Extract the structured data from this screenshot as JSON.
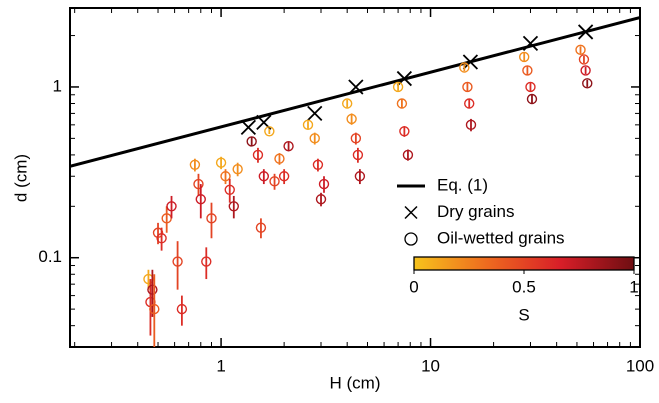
{
  "chart_data": {
    "type": "scatter",
    "xlabel": "H  (cm)",
    "ylabel": "d  (cm)",
    "xscale": "log",
    "yscale": "log",
    "xlim": [
      0.19,
      100
    ],
    "ylim": [
      0.03,
      2.9
    ],
    "xticks": [
      1,
      10,
      100
    ],
    "yticks": [
      0.1,
      1
    ],
    "legend": "lower right",
    "colormap": [
      "#f7c31c",
      "#ee6a1f",
      "#d81e28",
      "#6e0e12"
    ],
    "clim": [
      0,
      1
    ],
    "cticks": [
      0,
      0.5,
      1
    ],
    "clabel": "S",
    "series": [
      {
        "name": "Eq. (1)",
        "type": "line",
        "color": "#000000",
        "x": [
          0.19,
          100
        ],
        "values": [
          0.343,
          2.55
        ]
      },
      {
        "name": "Dry grains",
        "type": "cross",
        "color": "#000000",
        "x": [
          1.35,
          1.6,
          2.8,
          4.4,
          7.5,
          15.5,
          30,
          55
        ],
        "values": [
          0.58,
          0.62,
          0.7,
          1.0,
          1.12,
          1.4,
          1.8,
          2.1
        ]
      },
      {
        "name": "Oil-wetted grains",
        "type": "circle",
        "color": "#000000",
        "x": [
          0.45,
          0.46,
          0.47,
          0.48,
          0.5,
          0.52,
          0.55,
          0.58,
          0.62,
          0.65,
          0.75,
          0.78,
          0.8,
          0.85,
          0.9,
          1.0,
          1.05,
          1.1,
          1.15,
          1.2,
          1.4,
          1.5,
          1.55,
          1.6,
          1.7,
          1.8,
          1.9,
          2.0,
          2.1,
          2.6,
          2.8,
          2.9,
          3.0,
          3.1,
          4.0,
          4.2,
          4.4,
          4.5,
          4.6,
          7.0,
          7.3,
          7.5,
          7.8,
          14.5,
          15,
          15.3,
          15.6,
          28,
          29,
          30,
          30.5,
          52,
          54,
          55,
          56
        ],
        "values": [
          0.075,
          0.055,
          0.065,
          0.05,
          0.14,
          0.13,
          0.17,
          0.2,
          0.095,
          0.05,
          0.35,
          0.27,
          0.22,
          0.095,
          0.17,
          0.36,
          0.3,
          0.25,
          0.2,
          0.33,
          0.48,
          0.4,
          0.15,
          0.3,
          0.55,
          0.28,
          0.38,
          0.3,
          0.45,
          0.6,
          0.5,
          0.35,
          0.22,
          0.27,
          0.8,
          0.65,
          0.5,
          0.4,
          0.3,
          1.0,
          0.8,
          0.55,
          0.4,
          1.3,
          1.0,
          0.8,
          0.6,
          1.5,
          1.25,
          1.0,
          0.85,
          1.65,
          1.45,
          1.25,
          1.05
        ],
        "s": [
          0.1,
          0.6,
          0.8,
          0.4,
          0.5,
          0.6,
          0.4,
          0.7,
          0.5,
          0.6,
          0.2,
          0.5,
          0.7,
          0.6,
          0.5,
          0.1,
          0.3,
          0.6,
          0.8,
          0.2,
          0.9,
          0.6,
          0.5,
          0.7,
          0.1,
          0.5,
          0.3,
          0.6,
          0.8,
          0.1,
          0.2,
          0.6,
          0.8,
          0.7,
          0.1,
          0.2,
          0.5,
          0.6,
          0.8,
          0.1,
          0.3,
          0.6,
          0.8,
          0.2,
          0.4,
          0.6,
          0.8,
          0.2,
          0.4,
          0.6,
          0.9,
          0.3,
          0.5,
          0.7,
          0.9
        ],
        "yerr": [
          0.01,
          0.02,
          0.02,
          0.03,
          0.02,
          0.02,
          0.03,
          0.03,
          0.03,
          0.01,
          0.03,
          0.04,
          0.05,
          0.02,
          0.04,
          0.03,
          0.03,
          0.04,
          0.03,
          0.03,
          0.03,
          0.04,
          0.02,
          0.03,
          0.02,
          0.03,
          0.03,
          0.03,
          0.03,
          0.03,
          0.04,
          0.03,
          0.02,
          0.03,
          0.04,
          0.05,
          0.04,
          0.04,
          0.03,
          0.05,
          0.05,
          0.04,
          0.03,
          0.06,
          0.06,
          0.05,
          0.05,
          0.08,
          0.07,
          0.06,
          0.05,
          0.08,
          0.07,
          0.06,
          0.05
        ]
      }
    ]
  }
}
